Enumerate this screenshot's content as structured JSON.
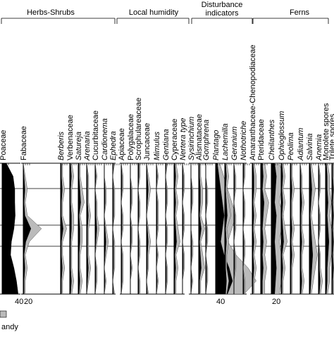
{
  "chart_data": {
    "type": "area",
    "groups": [
      {
        "label": "Herbs-Shrubs"
      },
      {
        "label": "Local humidity"
      },
      {
        "label": "Disturbance indicators"
      },
      {
        "label": "Ferns"
      }
    ],
    "y_positions": [
      0,
      0.1,
      0.2,
      0.3,
      0.4,
      0.5,
      0.6,
      0.7,
      0.8,
      0.9,
      1.0
    ],
    "taxa": [
      {
        "name": "Poaceae",
        "italic": false,
        "group": 0,
        "scale": "40",
        "values": [
          10,
          26,
          30,
          30,
          31,
          28,
          22,
          20,
          28,
          34,
          38
        ]
      },
      {
        "name": "Fabaceae",
        "italic": false,
        "group": 0,
        "scale": "20",
        "values": [
          0,
          1,
          2,
          1,
          2,
          9,
          3,
          1,
          2,
          1,
          1
        ]
      },
      {
        "name": "Berberis",
        "italic": true,
        "group": 0,
        "values": [
          1,
          1,
          2,
          1,
          1,
          3,
          1,
          1,
          2,
          1,
          1
        ]
      },
      {
        "name": "Verbenaceae",
        "italic": false,
        "group": 0,
        "values": [
          1,
          2,
          1,
          1,
          2,
          2,
          1,
          1,
          1,
          2,
          1
        ]
      },
      {
        "name": "Satureja",
        "italic": true,
        "group": 0,
        "values": [
          1,
          1,
          2,
          3,
          1,
          2,
          2,
          1,
          1,
          2,
          1
        ]
      },
      {
        "name": "Arenaria",
        "italic": true,
        "group": 0,
        "values": [
          0,
          1,
          1,
          1,
          2,
          1,
          1,
          1,
          2,
          1,
          0
        ]
      },
      {
        "name": "Cucurbitaceae",
        "italic": false,
        "group": 0,
        "values": [
          0,
          1,
          0,
          1,
          1,
          2,
          1,
          0,
          1,
          1,
          0
        ]
      },
      {
        "name": "Cardionema",
        "italic": true,
        "group": 0,
        "values": [
          0,
          0,
          1,
          1,
          0,
          1,
          2,
          1,
          0,
          1,
          0
        ]
      },
      {
        "name": "Ephedra",
        "italic": true,
        "group": 0,
        "values": [
          1,
          0,
          1,
          1,
          1,
          0,
          1,
          1,
          1,
          0,
          1
        ]
      },
      {
        "name": "Apiaceae",
        "italic": false,
        "group": 0,
        "values": [
          0,
          1,
          1,
          0,
          1,
          1,
          0,
          1,
          1,
          1,
          0
        ]
      },
      {
        "name": "Polygalaceae",
        "italic": false,
        "group": 0,
        "values": [
          0,
          0,
          1,
          1,
          0,
          1,
          1,
          0,
          1,
          0,
          0
        ]
      },
      {
        "name": "Scrophulareaceae",
        "italic": false,
        "group": 0,
        "values": [
          1,
          1,
          0,
          1,
          1,
          0,
          1,
          1,
          0,
          1,
          1
        ]
      },
      {
        "name": "Juncaceae",
        "italic": false,
        "group": 1,
        "values": [
          0,
          1,
          2,
          1,
          0,
          1,
          2,
          1,
          1,
          0,
          1
        ]
      },
      {
        "name": "Mimulus",
        "italic": true,
        "group": 1,
        "values": [
          0,
          1,
          0,
          1,
          1,
          1,
          0,
          1,
          0,
          1,
          0
        ]
      },
      {
        "name": "Gentiana",
        "italic": true,
        "group": 1,
        "values": [
          1,
          0,
          1,
          1,
          0,
          1,
          1,
          0,
          1,
          1,
          0
        ]
      },
      {
        "name": "Cyperaceae",
        "italic": false,
        "group": 1,
        "values": [
          1,
          2,
          1,
          2,
          1,
          2,
          3,
          1,
          2,
          1,
          1
        ]
      },
      {
        "name": "Nertera type",
        "italic": true,
        "group": 1,
        "values": [
          0,
          1,
          1,
          0,
          1,
          1,
          0,
          1,
          1,
          0,
          0
        ]
      },
      {
        "name": "Sysirinchium",
        "italic": true,
        "group": 1,
        "values": [
          0,
          0,
          1,
          1,
          0,
          0,
          1,
          1,
          0,
          1,
          0
        ]
      },
      {
        "name": "Alismataceae",
        "italic": false,
        "group": 1,
        "values": [
          1,
          1,
          2,
          2,
          1,
          3,
          1,
          2,
          3,
          1,
          1
        ]
      },
      {
        "name": "Gomphrena",
        "italic": true,
        "group": 2,
        "values": [
          0,
          0,
          1,
          1,
          0,
          1,
          1,
          0,
          1,
          1,
          0
        ]
      },
      {
        "name": "Plantago",
        "italic": true,
        "group": 2,
        "scale": "40",
        "values": [
          2,
          4,
          6,
          8,
          10,
          8,
          6,
          10,
          16,
          20,
          14
        ]
      },
      {
        "name": "Lachemilla",
        "italic": true,
        "group": 2,
        "values": [
          1,
          2,
          1,
          2,
          3,
          1,
          2,
          1,
          1,
          2,
          1
        ]
      },
      {
        "name": "Geranium",
        "italic": true,
        "group": 2,
        "values": [
          0,
          1,
          1,
          0,
          1,
          1,
          0,
          1,
          1,
          0,
          0
        ]
      },
      {
        "name": "Nothotriche",
        "italic": true,
        "group": 2,
        "values": [
          1,
          1,
          0,
          1,
          1,
          0,
          1,
          1,
          0,
          1,
          1
        ]
      },
      {
        "name": "Amaranthaceae-Chenopodiaceae",
        "italic": false,
        "group": 2,
        "values": [
          1,
          2,
          2,
          1,
          2,
          1,
          2,
          1,
          2,
          1,
          1
        ]
      },
      {
        "name": "Pteridaceae",
        "italic": false,
        "group": 3,
        "values": [
          2,
          3,
          2,
          4,
          3,
          2,
          3,
          2,
          3,
          2,
          2
        ]
      },
      {
        "name": "Cheilanthes",
        "italic": true,
        "group": 3,
        "scale": "20",
        "values": [
          4,
          6,
          5,
          4,
          6,
          5,
          4,
          5,
          6,
          5,
          4
        ]
      },
      {
        "name": "Ophioglossum",
        "italic": true,
        "group": 3,
        "values": [
          1,
          2,
          1,
          2,
          1,
          2,
          3,
          1,
          2,
          1,
          1
        ]
      },
      {
        "name": "Peolima",
        "italic": true,
        "group": 3,
        "values": [
          1,
          1,
          2,
          1,
          1,
          2,
          1,
          2,
          1,
          1,
          1
        ]
      },
      {
        "name": "Adiantum",
        "italic": true,
        "group": 3,
        "values": [
          0,
          1,
          1,
          2,
          1,
          1,
          2,
          1,
          1,
          2,
          1
        ]
      },
      {
        "name": "Salvinia",
        "italic": true,
        "group": 3,
        "values": [
          1,
          2,
          3,
          2,
          1,
          2,
          3,
          4,
          3,
          2,
          1
        ]
      },
      {
        "name": "Anemia",
        "italic": true,
        "group": 3,
        "values": [
          0,
          1,
          1,
          0,
          1,
          1,
          0,
          1,
          1,
          2,
          1
        ]
      },
      {
        "name": "Monolete spores",
        "italic": false,
        "group": 3,
        "values": [
          1,
          2,
          2,
          3,
          2,
          3,
          4,
          3,
          2,
          2,
          1
        ]
      },
      {
        "name": "Trilete spores",
        "italic": false,
        "group": 3,
        "values": [
          1,
          1,
          2,
          1,
          2,
          1,
          2,
          1,
          2,
          1,
          1
        ]
      }
    ],
    "legend": [
      {
        "label": "andy",
        "color": "#bbbbbb"
      }
    ],
    "colors": {
      "silhouette": "#000000",
      "exaggeration": "#bbbbbb"
    }
  }
}
